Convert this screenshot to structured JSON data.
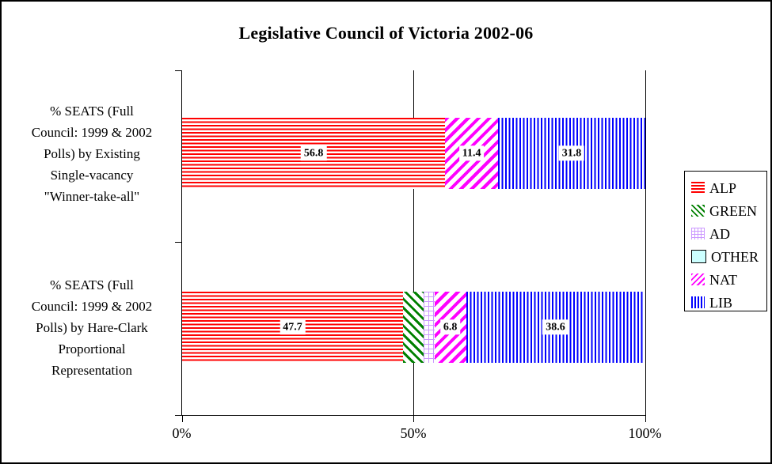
{
  "title": "Legislative Council of Victoria 2002-06",
  "chart_data": {
    "type": "bar",
    "orientation": "horizontal",
    "stacked": true,
    "unit": "% of seats",
    "xlim": [
      0,
      100
    ],
    "grid": "vertical gridlines at 50% and 100%",
    "legend_position": "right",
    "x_ticks": [
      {
        "label": "0%",
        "value": 0
      },
      {
        "label": "50%",
        "value": 50
      },
      {
        "label": "100%",
        "value": 100
      }
    ],
    "categories": [
      {
        "lines": [
          "% SEATS (Full",
          "Council: 1999 & 2002",
          "Polls) by Existing",
          "Single-vacancy",
          "\"Winner-take-all\""
        ]
      },
      {
        "lines": [
          "% SEATS (Full",
          "Council: 1999 & 2002",
          "Polls) by Hare-Clark",
          "Proportional",
          "Representation"
        ]
      }
    ],
    "series": [
      {
        "name": "ALP",
        "color": "#ff0000",
        "pattern": "horizontal-stripes",
        "values": [
          56.8,
          47.7
        ],
        "labels": [
          "56.8",
          "47.7"
        ]
      },
      {
        "name": "GREEN",
        "color": "#008000",
        "pattern": "diagonal-down-stripes",
        "values": [
          0,
          4.5
        ],
        "labels": [
          "",
          ""
        ]
      },
      {
        "name": "AD",
        "color": "#cc99ff",
        "pattern": "grid",
        "values": [
          0,
          2.3
        ],
        "labels": [
          "",
          ""
        ]
      },
      {
        "name": "OTHER",
        "color": "#ccffff",
        "pattern": "solid",
        "values": [
          0,
          0
        ],
        "labels": [
          "",
          ""
        ]
      },
      {
        "name": "NAT",
        "color": "#ff00ff",
        "pattern": "diagonal-up-stripes",
        "values": [
          11.4,
          6.8
        ],
        "labels": [
          "11.4",
          "6.8"
        ]
      },
      {
        "name": "LIB",
        "color": "#0000ff",
        "pattern": "vertical-stripes",
        "values": [
          31.8,
          38.6
        ],
        "labels": [
          "31.8",
          "38.6"
        ]
      }
    ]
  }
}
